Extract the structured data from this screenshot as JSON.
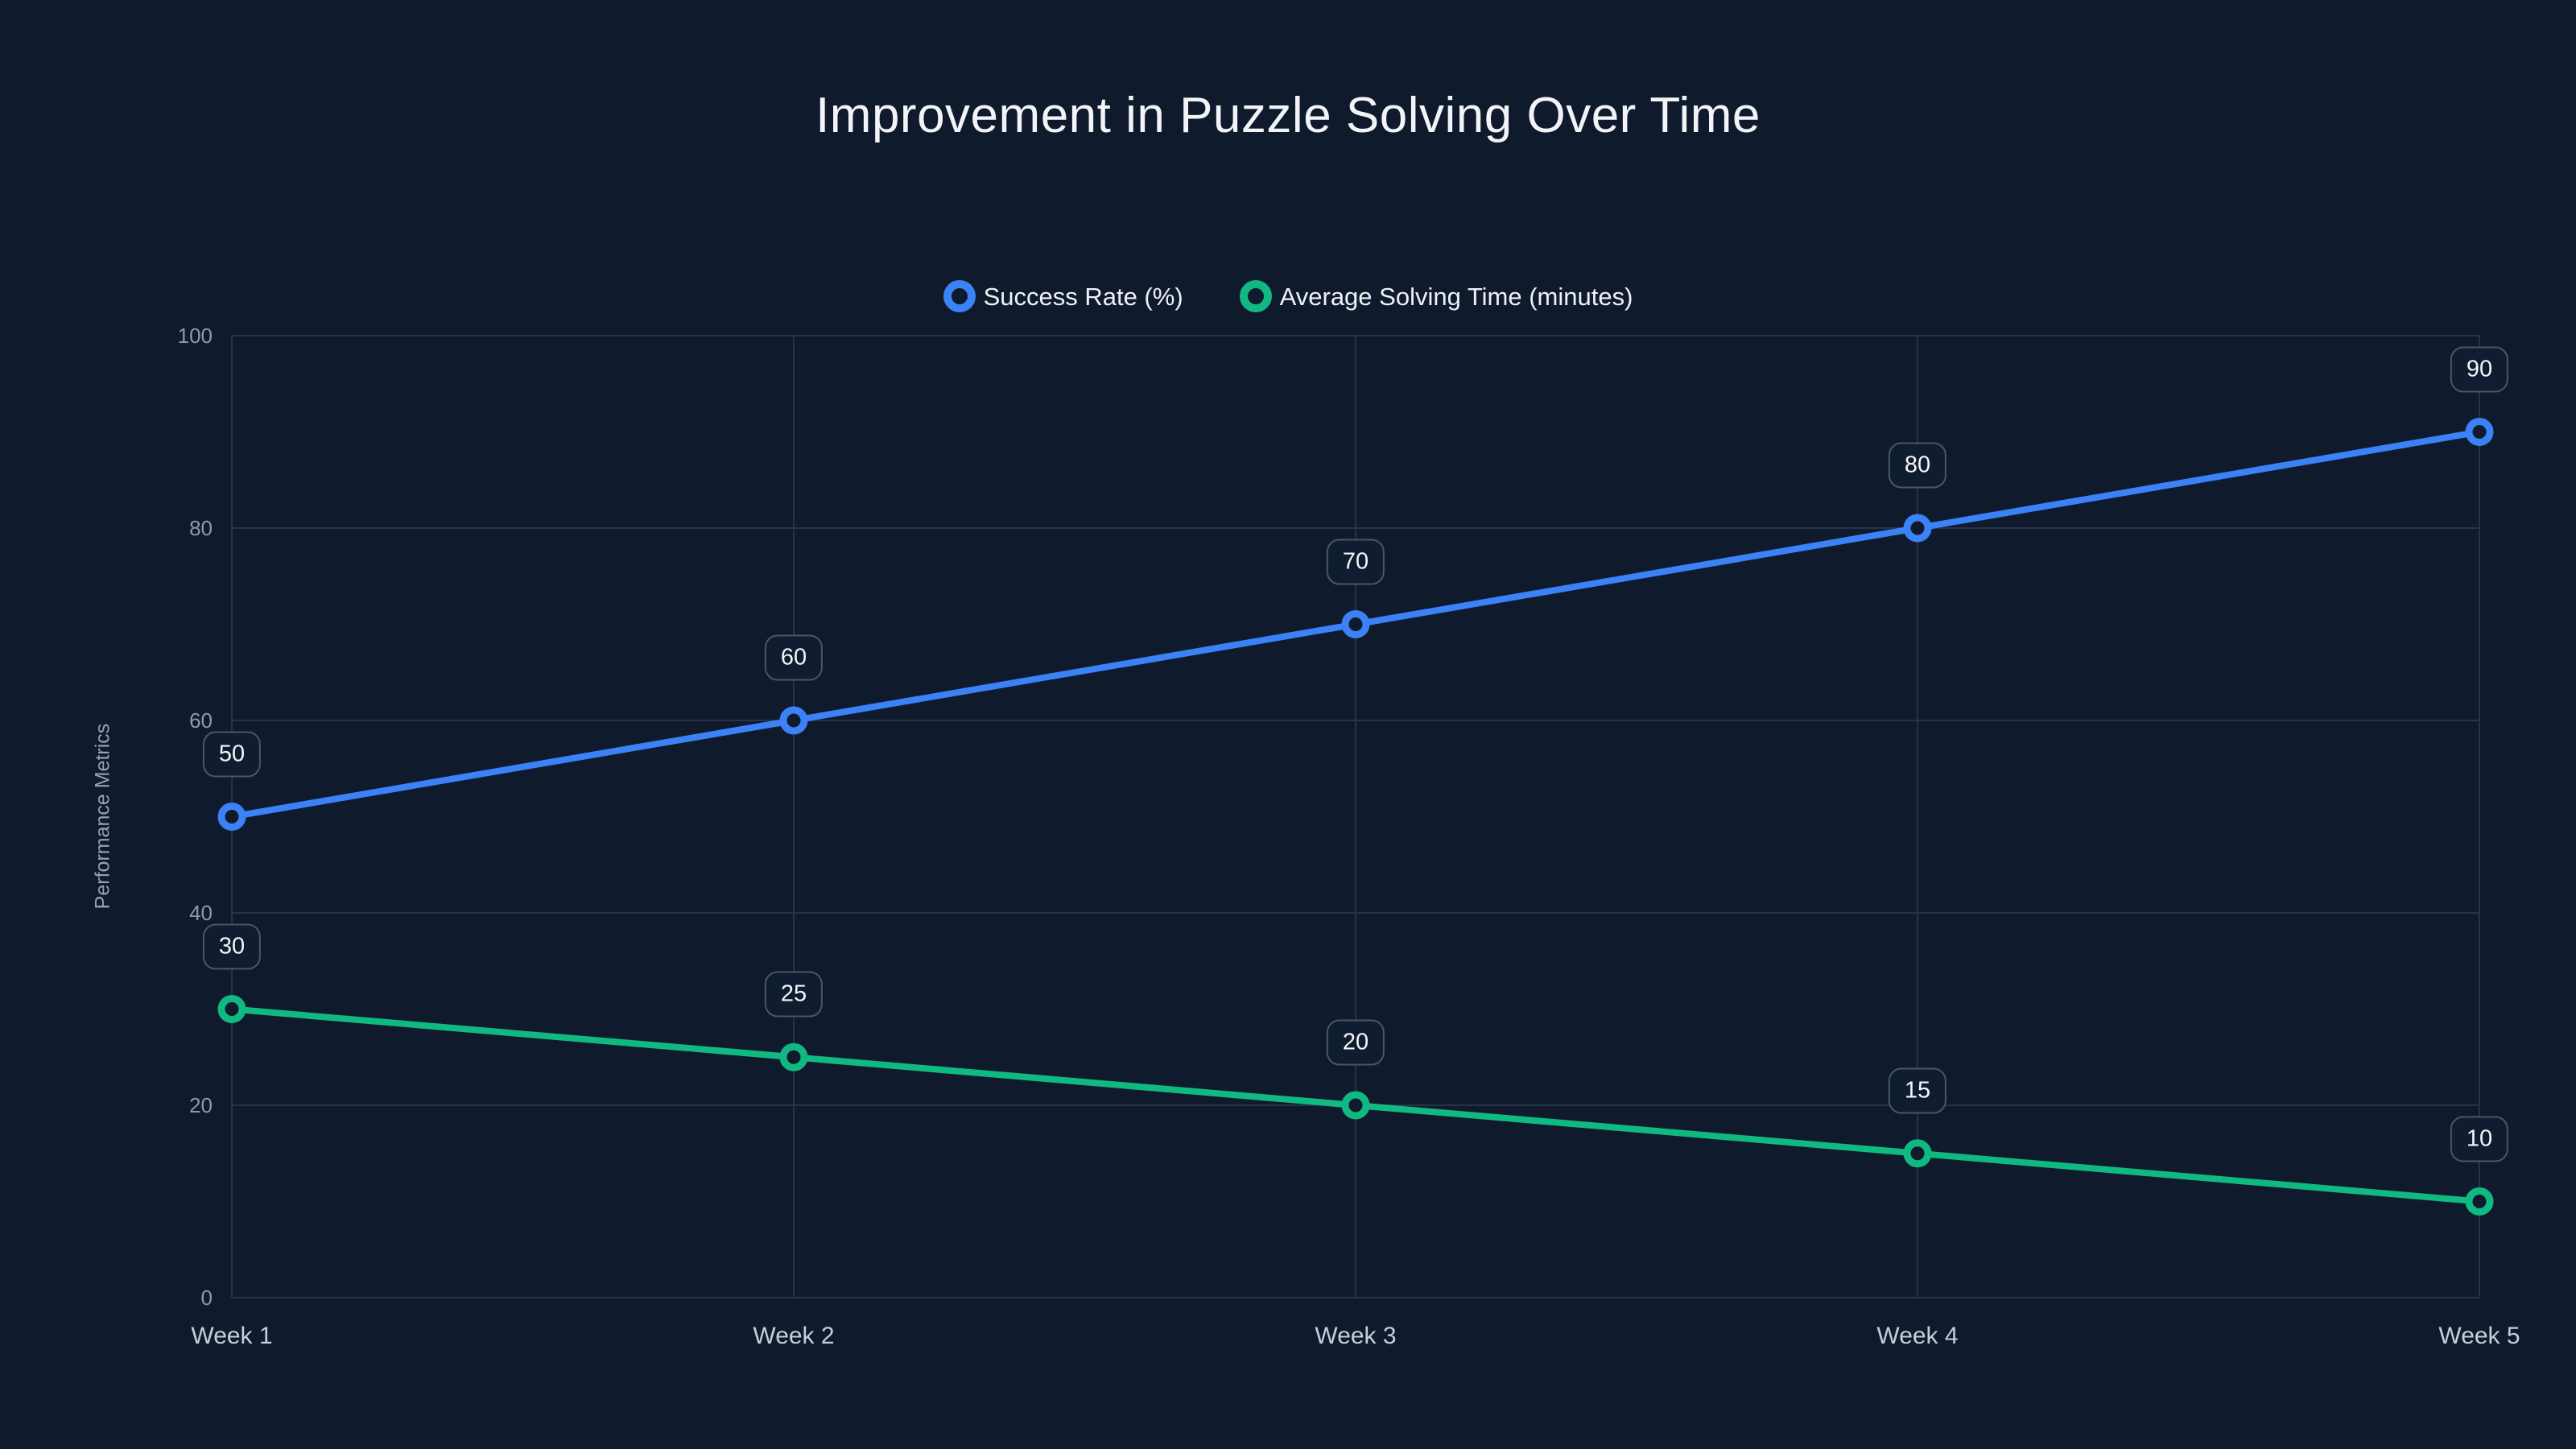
{
  "chart_data": {
    "type": "line",
    "title": "Improvement in Puzzle Solving Over Time",
    "ylabel": "Performance Metrics",
    "xlabel": "",
    "x": [
      "Week 1",
      "Week 2",
      "Week 3",
      "Week 4",
      "Week 5"
    ],
    "series": [
      {
        "name": "Success Rate (%)",
        "color": "#3b82f6",
        "values": [
          50,
          60,
          70,
          80,
          90
        ]
      },
      {
        "name": "Average Solving Time (minutes)",
        "color": "#10b981",
        "values": [
          30,
          25,
          20,
          15,
          10
        ]
      }
    ],
    "ylim": [
      0,
      100
    ],
    "yticks": [
      0,
      20,
      40,
      60,
      80,
      100
    ],
    "grid": true,
    "legend_position": "top",
    "data_labels": true
  },
  "colors": {
    "background": "#0f1b2d",
    "grid": "#263349",
    "badge_bg": "#101c2f",
    "badge_border": "#4a556c",
    "tick_text": "#8f99a8",
    "x_tick_text": "#c6cedb",
    "title_text": "#f2f4f7"
  }
}
